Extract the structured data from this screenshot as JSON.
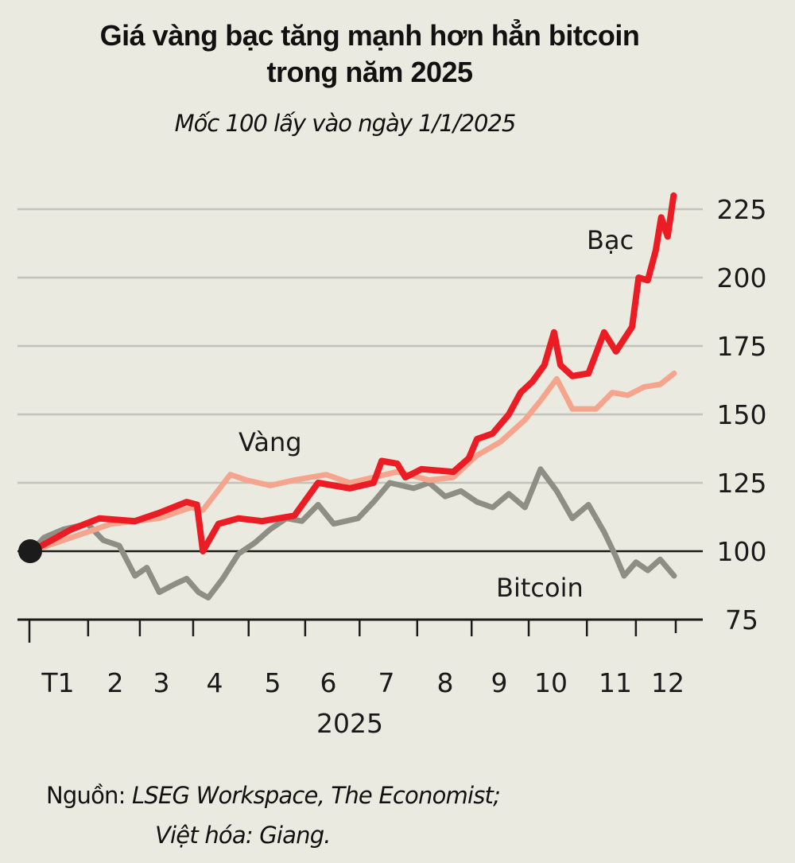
{
  "chart_data": {
    "type": "line",
    "title": "Giá vàng bạc tăng mạnh hơn hẳn bitcoin trong năm 2025",
    "title_lines": [
      "Giá vàng bạc tăng mạnh hơn hẳn bitcoin",
      "trong năm 2025"
    ],
    "subtitle": "Mốc 100 lấy vào ngày 1/1/2025",
    "xlabel": "2025",
    "ylabel": "",
    "x_unit": "months since 1 Jan 2025",
    "xlim": [
      0,
      12
    ],
    "ylim": [
      75,
      230
    ],
    "y_ticks": [
      225,
      200,
      175,
      150,
      125,
      100,
      75
    ],
    "x_ticks": [
      {
        "pos": 0.0,
        "label": ""
      },
      {
        "pos": 1.09,
        "label": "T1"
      },
      {
        "pos": 2.05,
        "label": "2"
      },
      {
        "pos": 3.04,
        "label": "3"
      },
      {
        "pos": 4.07,
        "label": "4"
      },
      {
        "pos": 5.12,
        "label": "5"
      },
      {
        "pos": 6.13,
        "label": "6"
      },
      {
        "pos": 7.2,
        "label": "7"
      },
      {
        "pos": 8.21,
        "label": "8"
      },
      {
        "pos": 9.27,
        "label": "9"
      },
      {
        "pos": 10.35,
        "label": "10"
      },
      {
        "pos": 11.26,
        "label": "11"
      },
      {
        "pos": 12.0,
        "label": "12"
      }
    ],
    "baseline": 100,
    "grid": true,
    "series": [
      {
        "name": "Vàng",
        "color": "#f5a58e",
        "points": [
          [
            0.04,
            100
          ],
          [
            0.78,
            105
          ],
          [
            1.52,
            110
          ],
          [
            2.41,
            112
          ],
          [
            3.0,
            116
          ],
          [
            3.22,
            115
          ],
          [
            3.73,
            128
          ],
          [
            4.03,
            126
          ],
          [
            4.47,
            124
          ],
          [
            4.92,
            126
          ],
          [
            5.51,
            128
          ],
          [
            5.95,
            125
          ],
          [
            6.39,
            127
          ],
          [
            6.83,
            129
          ],
          [
            7.42,
            126
          ],
          [
            7.87,
            127
          ],
          [
            8.31,
            135
          ],
          [
            8.75,
            140
          ],
          [
            9.2,
            148
          ],
          [
            9.49,
            155
          ],
          [
            9.79,
            163
          ],
          [
            10.08,
            152
          ],
          [
            10.52,
            152
          ],
          [
            10.82,
            158
          ],
          [
            11.11,
            157
          ],
          [
            11.41,
            160
          ],
          [
            11.71,
            161
          ],
          [
            11.97,
            165
          ]
        ]
      },
      {
        "name": "Bạc",
        "color": "#ec1c24",
        "points": [
          [
            0.04,
            100
          ],
          [
            0.78,
            108
          ],
          [
            1.3,
            112
          ],
          [
            1.96,
            111
          ],
          [
            2.41,
            114
          ],
          [
            2.92,
            118
          ],
          [
            3.11,
            117
          ],
          [
            3.22,
            100
          ],
          [
            3.51,
            110
          ],
          [
            3.88,
            112
          ],
          [
            4.32,
            111
          ],
          [
            4.92,
            113
          ],
          [
            5.36,
            125
          ],
          [
            5.95,
            123
          ],
          [
            6.39,
            125
          ],
          [
            6.54,
            133
          ],
          [
            6.83,
            132
          ],
          [
            6.98,
            127
          ],
          [
            7.28,
            130
          ],
          [
            7.87,
            129
          ],
          [
            8.16,
            134
          ],
          [
            8.31,
            141
          ],
          [
            8.6,
            143
          ],
          [
            8.9,
            150
          ],
          [
            9.12,
            158
          ],
          [
            9.34,
            162
          ],
          [
            9.56,
            168
          ],
          [
            9.74,
            180
          ],
          [
            9.86,
            168
          ],
          [
            10.08,
            164
          ],
          [
            10.38,
            165
          ],
          [
            10.67,
            180
          ],
          [
            10.89,
            173
          ],
          [
            11.19,
            182
          ],
          [
            11.31,
            200
          ],
          [
            11.48,
            199
          ],
          [
            11.63,
            210
          ],
          [
            11.73,
            222
          ],
          [
            11.85,
            215
          ],
          [
            11.96,
            230
          ]
        ]
      },
      {
        "name": "Bitcoin",
        "color": "#8e8e84",
        "points": [
          [
            0.04,
            100
          ],
          [
            0.27,
            105
          ],
          [
            0.63,
            108
          ],
          [
            1.08,
            110
          ],
          [
            1.37,
            104
          ],
          [
            1.67,
            102
          ],
          [
            1.96,
            91
          ],
          [
            2.18,
            94
          ],
          [
            2.41,
            85
          ],
          [
            2.7,
            88
          ],
          [
            2.92,
            90
          ],
          [
            3.14,
            85
          ],
          [
            3.32,
            83
          ],
          [
            3.59,
            90
          ],
          [
            3.88,
            99
          ],
          [
            4.18,
            103
          ],
          [
            4.47,
            108
          ],
          [
            4.77,
            112
          ],
          [
            5.06,
            111
          ],
          [
            5.36,
            117
          ],
          [
            5.65,
            110
          ],
          [
            6.1,
            112
          ],
          [
            6.39,
            118
          ],
          [
            6.69,
            125
          ],
          [
            7.13,
            123
          ],
          [
            7.42,
            125
          ],
          [
            7.72,
            120
          ],
          [
            8.01,
            122
          ],
          [
            8.31,
            118
          ],
          [
            8.6,
            116
          ],
          [
            8.9,
            121
          ],
          [
            9.2,
            116
          ],
          [
            9.49,
            130
          ],
          [
            9.79,
            122
          ],
          [
            10.08,
            112
          ],
          [
            10.38,
            117
          ],
          [
            10.67,
            107
          ],
          [
            10.89,
            98
          ],
          [
            11.04,
            91
          ],
          [
            11.26,
            96
          ],
          [
            11.48,
            93
          ],
          [
            11.71,
            97
          ],
          [
            11.97,
            91
          ]
        ]
      }
    ],
    "annotations": [
      {
        "text": "Vàng",
        "series": "Vàng"
      },
      {
        "text": "Bạc",
        "series": "Bạc"
      },
      {
        "text": "Bitcoin",
        "series": "Bitcoin"
      }
    ],
    "source_label": "Nguồn:",
    "source_text": "LSEG Workspace, The Economist;",
    "credit": "Việt hóa: Giang."
  }
}
